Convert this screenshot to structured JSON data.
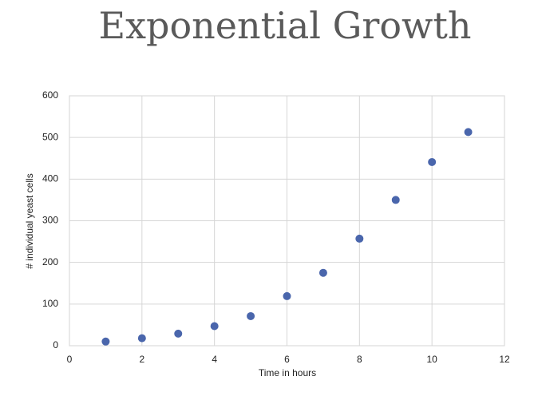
{
  "chart_data": {
    "type": "scatter",
    "title": "Exponential Growth",
    "x_label": "Time in hours",
    "y_label": "# individual yeast cells",
    "x": [
      1,
      2,
      3,
      4,
      5,
      6,
      7,
      8,
      9,
      10,
      11
    ],
    "values": [
      10,
      18,
      29,
      47,
      71,
      119,
      175,
      257,
      350,
      441,
      513
    ],
    "color": "#4a66ac",
    "xlim": [
      0,
      12
    ],
    "xticks": [
      0,
      2,
      4,
      6,
      8,
      10,
      12
    ],
    "ylim": [
      0,
      600
    ],
    "yticks": [
      0,
      100,
      200,
      300,
      400,
      500,
      600
    ],
    "grid": true
  }
}
